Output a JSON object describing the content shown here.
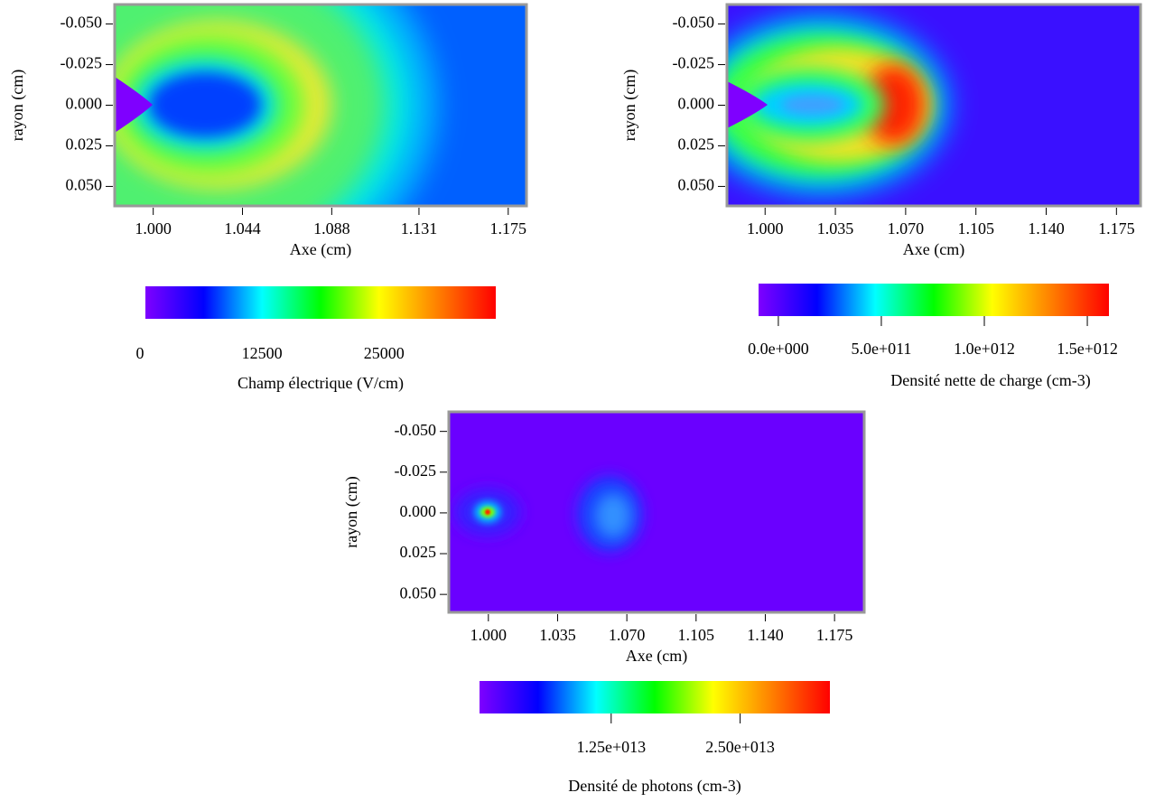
{
  "chart_data": [
    {
      "type": "heatmap",
      "xlabel": "Axe (cm)",
      "ylabel": "rayon (cm)",
      "xlim": [
        0.981,
        1.184
      ],
      "xticks": [
        {
          "value": 1.0,
          "label": "1.000"
        },
        {
          "value": 1.044,
          "label": "1.044"
        },
        {
          "value": 1.088,
          "label": "1.088"
        },
        {
          "value": 1.131,
          "label": "1.131"
        },
        {
          "value": 1.175,
          "label": "1.175"
        }
      ],
      "ylim": [
        0.062,
        -0.062
      ],
      "yticks": [
        {
          "value": -0.05,
          "label": "-0.050"
        },
        {
          "value": -0.025,
          "label": "-0.025"
        },
        {
          "value": 0,
          "label": "0.000"
        },
        {
          "value": 0.025,
          "label": "0.025"
        },
        {
          "value": 0.05,
          "label": "0.050"
        }
      ],
      "colorbar": {
        "label": "Champ électrique (V/cm)",
        "lim": [
          0,
          35900
        ],
        "ticks": [
          0,
          12500,
          25000
        ],
        "tick_marks": false,
        "colormap": [
          "#7f00ff",
          "#0000ff",
          "#00ffff",
          "#00ff00",
          "#ffff00",
          "#ff8000",
          "#ff0000"
        ]
      }
    },
    {
      "type": "heatmap",
      "xlabel": "Axe (cm)",
      "ylabel": "rayon (cm)",
      "xlim": [
        0.981,
        1.187
      ],
      "xticks": [
        {
          "value": 1.0,
          "label": "1.000"
        },
        {
          "value": 1.035,
          "label": "1.035"
        },
        {
          "value": 1.07,
          "label": "1.070"
        },
        {
          "value": 1.105,
          "label": "1.105"
        },
        {
          "value": 1.14,
          "label": "1.140"
        },
        {
          "value": 1.175,
          "label": "1.175"
        }
      ],
      "ylim": [
        0.062,
        -0.062
      ],
      "yticks": [
        {
          "value": -0.05,
          "label": "-0.050"
        },
        {
          "value": -0.025,
          "label": "-0.025"
        },
        {
          "value": 0,
          "label": "0.000"
        },
        {
          "value": 0.025,
          "label": "0.025"
        },
        {
          "value": 0.05,
          "label": "0.050"
        }
      ],
      "colorbar": {
        "label": "Densité nette de charge (cm-3)",
        "lim": [
          -96000000000,
          1605000000000
        ],
        "ticks": [
          {
            "value": 0,
            "label": "0.0e+000"
          },
          {
            "value": 500000000000,
            "label": "5.0e+011"
          },
          {
            "value": 1000000000000,
            "label": "1.0e+012"
          },
          {
            "value": 1500000000000,
            "label": "1.5e+012"
          }
        ],
        "tick_marks": true,
        "colormap": [
          "#7f00ff",
          "#0000ff",
          "#00ffff",
          "#00ff00",
          "#ffff00",
          "#ff8000",
          "#ff0000"
        ]
      }
    },
    {
      "type": "heatmap",
      "xlabel": "Axe (cm)",
      "ylabel": "rayon (cm)",
      "xlim": [
        0.98,
        1.19
      ],
      "xticks": [
        {
          "value": 1.0,
          "label": "1.000"
        },
        {
          "value": 1.035,
          "label": "1.035"
        },
        {
          "value": 1.07,
          "label": "1.070"
        },
        {
          "value": 1.105,
          "label": "1.105"
        },
        {
          "value": 1.14,
          "label": "1.140"
        },
        {
          "value": 1.175,
          "label": "1.175"
        }
      ],
      "ylim": [
        0.061,
        -0.062
      ],
      "yticks": [
        {
          "value": -0.05,
          "label": "-0.050"
        },
        {
          "value": -0.025,
          "label": "-0.025"
        },
        {
          "value": 0,
          "label": "0.000"
        },
        {
          "value": 0.025,
          "label": "0.025"
        },
        {
          "value": 0.05,
          "label": "0.050"
        }
      ],
      "colorbar": {
        "label": "Densité de photons (cm-3)",
        "lim": [
          -260000000000,
          33700000000000
        ],
        "ticks": [
          {
            "value": 12500000000000,
            "label": "1.25e+013"
          },
          {
            "value": 25000000000000,
            "label": "2.50e+013"
          }
        ],
        "tick_marks": true,
        "colormap": [
          "#7f00ff",
          "#0000ff",
          "#00ffff",
          "#00ff00",
          "#ffff00",
          "#ff8000",
          "#ff0000"
        ]
      }
    }
  ]
}
